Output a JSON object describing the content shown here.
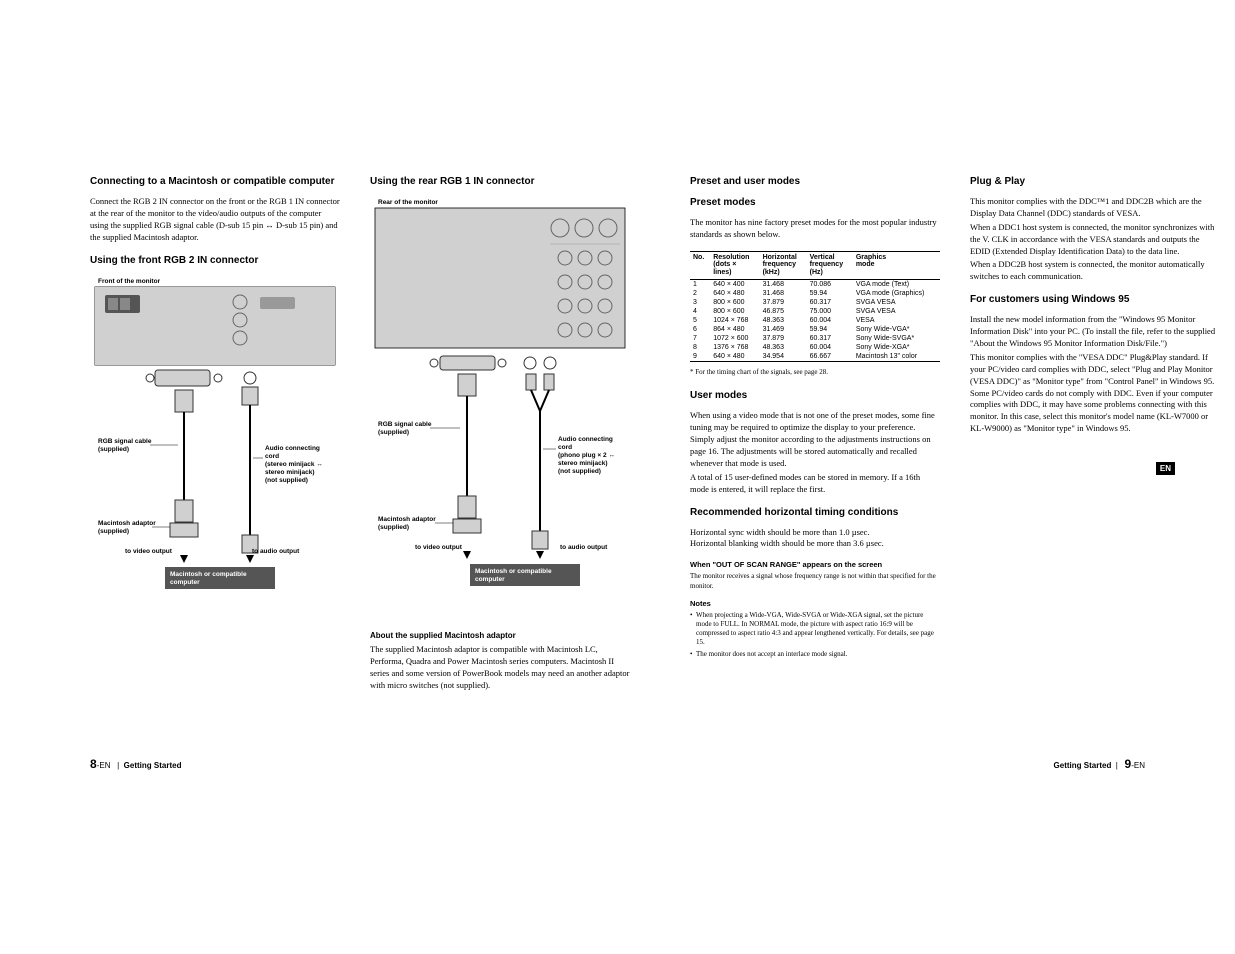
{
  "col1": {
    "h1": "Connecting to a Macintosh or compatible computer",
    "p1": "Connect the RGB 2 IN connector on the front or the RGB 1 IN connector at the rear of the monitor to the video/audio outputs of the computer using the supplied RGB signal cable (D-sub 15 pin ↔ D-sub 15 pin) and the supplied Macintosh adaptor.",
    "h2": "Using the front RGB 2 IN connector",
    "diag": {
      "front_label": "Front of the monitor",
      "rgb_cable": "RGB signal cable (supplied)",
      "audio_cord": "Audio connecting cord\n(stereo minijack ↔ stereo minijack)\n(not supplied)",
      "mac_adaptor": "Macintosh adaptor (supplied)",
      "to_video": "to video output",
      "to_audio": "to audio output",
      "mac_box": "Macintosh or compatible computer"
    }
  },
  "col2": {
    "h1": "Using the rear RGB 1 IN connector",
    "diag": {
      "rear_label": "Rear of the monitor",
      "rgb_cable": "RGB signal cable (supplied)",
      "audio_cord": "Audio connecting cord\n(phono plug × 2 ↔ stereo minijack)\n(not supplied)",
      "mac_adaptor": "Macintosh adaptor (supplied)",
      "to_video": "to video output",
      "to_audio": "to audio output",
      "mac_box": "Macintosh or compatible computer"
    },
    "about_h": "About the supplied Macintosh adaptor",
    "about_p": "The supplied Macintosh adaptor is compatible with Macintosh LC, Performa, Quadra and Power Macintosh series computers.  Macintosh II series and some version of PowerBook models may need an another adaptor with micro switches (not supplied)."
  },
  "col3": {
    "h1": "Preset and user modes",
    "h2": "Preset modes",
    "p1": "The monitor has nine factory preset modes for the most popular industry standards as shown below.",
    "table": {
      "headers": [
        "No.",
        "Resolution (dots × lines)",
        "Horizontal frequency (kHz)",
        "Vertical frequency (Hz)",
        "Graphics mode"
      ],
      "rows": [
        [
          "1",
          "640 × 400",
          "31.468",
          "70.086",
          "VGA mode (Text)"
        ],
        [
          "2",
          "640 × 480",
          "31.468",
          "59.94",
          "VGA mode (Graphics)"
        ],
        [
          "3",
          "800 × 600",
          "37.879",
          "60.317",
          "SVGA VESA"
        ],
        [
          "4",
          "800 × 600",
          "46.875",
          "75.000",
          "SVGA VESA"
        ],
        [
          "5",
          "1024 × 768",
          "48.363",
          "60.004",
          "VESA"
        ],
        [
          "6",
          "864 × 480",
          "31.469",
          "59.94",
          "Sony Wide-VGA*"
        ],
        [
          "7",
          "1072 × 600",
          "37.879",
          "60.317",
          "Sony Wide-SVGA*"
        ],
        [
          "8",
          "1376 × 768",
          "48.363",
          "60.004",
          "Sony Wide-XGA*"
        ],
        [
          "9",
          "640 × 480",
          "34.954",
          "66.667",
          "Macintosh 13\" color"
        ]
      ]
    },
    "table_note": "* For the timing chart of the signals, see page 28.",
    "h3": "User modes",
    "p2": "When using a video mode that is not one of the preset modes, some fine tuning may be required to optimize the display to your preference.  Simply adjust the monitor according to the adjustments instructions on page 16.  The adjustments will be stored automatically and recalled whenever that mode is used.",
    "p2b": "A total of 15 user-defined modes can be stored in memory.  If a 16th mode is entered, it will replace the first.",
    "h4": "Recommended horizontal timing conditions",
    "p3": "Horizontal sync width should be more than 1.0 µsec.",
    "p3b": "Horizontal blanking width should be more than 3.6 µsec.",
    "h5": "When \"OUT OF SCAN RANGE\" appears on the screen",
    "p4": "The monitor receives a signal whose frequency range is not within that specified for the monitor.",
    "notes_h": "Notes",
    "notes": [
      "When projecting a Wide-VGA, Wide-SVGA or Wide-XGA signal, set the picture mode to FULL. In NORMAL mode, the picture with aspect ratio 16:9 will be compressed to aspect ratio 4:3 and appear lengthened vertically. For details, see page 15.",
      "The monitor does not accept an interlace mode signal."
    ]
  },
  "col4": {
    "h1": "Plug & Play",
    "p1": "This monitor complies with the DDC™1 and DDC2B which are the Display Data Channel (DDC) standards of VESA.",
    "p2": "When a DDC1 host system is connected, the monitor synchronizes with the V. CLK in accordance with the VESA standards and outputs the EDID (Extended Display Identification Data) to the data line.",
    "p3": "When a DDC2B host system is connected, the monitor automatically switches to each communication.",
    "h2": "For customers using Windows 95",
    "p4": "Install the new model information from the \"Windows 95 Monitor Information Disk\" into your PC. (To install the file, refer to the supplied \"About the Windows 95 Monitor Information Disk/File.\")",
    "p5": "This monitor complies with the \"VESA DDC\" Plug&Play standard. If your PC/video card complies with DDC, select \"Plug and Play Monitor (VESA DDC)\" as \"Monitor type\" from \"Control Panel\" in Windows 95. Some PC/video cards do not comply with DDC. Even if your computer complies with DDC, it may have some problems connecting with this monitor. In this case, select this monitor's model name (KL-W7000 or KL-W9000) as \"Monitor type\" in Windows 95."
  },
  "footer": {
    "left_page": "8",
    "left_suf": "-EN",
    "left_section": "Getting Started",
    "right_section": "Getting Started",
    "right_page": "9",
    "right_suf": "-EN"
  },
  "en_badge": "EN"
}
